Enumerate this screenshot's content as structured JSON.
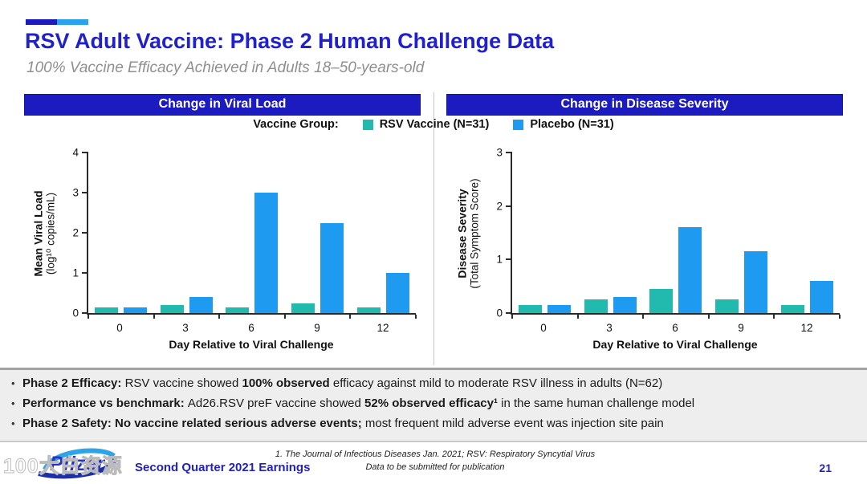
{
  "slide": {
    "title": "RSV Adult Vaccine: Phase 2 Human Challenge Data",
    "subtitle": "100% Vaccine Efficacy Achieved in Adults 18–50-years-old",
    "page_number": "21",
    "footer_label": "Second Quarter 2021 Earnings",
    "logo_text": "Pfizer",
    "watermark": "100大白资源",
    "footnotes": [
      "1.    The Journal of Infectious Diseases Jan. 2021; RSV: Respiratory Syncytial Virus",
      "Data to be submitted for publication"
    ]
  },
  "panels": [
    {
      "header": "Change in Viral Load"
    },
    {
      "header": "Change in Disease Severity"
    }
  ],
  "legend": {
    "label": "Vaccine Group:",
    "items": [
      {
        "name": "RSV Vaccine (N=31)",
        "color": "#22BAAE"
      },
      {
        "name": "Placebo (N=31)",
        "color": "#1E9AF0"
      }
    ]
  },
  "colors": {
    "header_bar": "#1B1BBF",
    "title_blue": "#2121CC",
    "accent_dark": "#1B1BBF",
    "accent_light": "#29A3EB",
    "rsv_vaccine_teal": "#22BAAE",
    "placebo_blue": "#1E9AF0"
  },
  "chart_data": [
    {
      "type": "bar",
      "title": "Change in Viral Load",
      "categories": [
        "0",
        "3",
        "6",
        "9",
        "12"
      ],
      "series": [
        {
          "name": "RSV Vaccine (N=31)",
          "color": "#22BAAE",
          "values": [
            0.15,
            0.2,
            0.15,
            0.25,
            0.15
          ]
        },
        {
          "name": "Placebo (N=31)",
          "color": "#1E9AF0",
          "values": [
            0.15,
            0.4,
            3.0,
            2.25,
            1.0
          ]
        }
      ],
      "xlabel": "Day Relative to Viral Challenge",
      "ylabel": "Mean Viral Load",
      "ylabel2": "(log¹⁰ copies/mL)",
      "ylim": [
        0,
        4
      ],
      "yticks": [
        0,
        1,
        2,
        3,
        4
      ],
      "grid": false,
      "legend_position": "top-center-shared"
    },
    {
      "type": "bar",
      "title": "Change in Disease Severity",
      "categories": [
        "0",
        "3",
        "6",
        "9",
        "12"
      ],
      "series": [
        {
          "name": "RSV Vaccine (N=31)",
          "color": "#22BAAE",
          "values": [
            0.15,
            0.25,
            0.45,
            0.25,
            0.15
          ]
        },
        {
          "name": "Placebo (N=31)",
          "color": "#1E9AF0",
          "values": [
            0.15,
            0.3,
            1.6,
            1.15,
            0.6
          ]
        }
      ],
      "xlabel": "Day Relative to Viral Challenge",
      "ylabel": "Disease Severity",
      "ylabel2": "(Total Symptom Score)",
      "ylim": [
        0,
        3
      ],
      "yticks": [
        0,
        1,
        2,
        3
      ],
      "grid": false,
      "legend_position": "top-center-shared"
    }
  ],
  "bullets": [
    {
      "segments": [
        {
          "text": "Phase 2 Efficacy: ",
          "bold": true
        },
        {
          "text": "RSV vaccine showed ",
          "bold": false
        },
        {
          "text": "100% observed ",
          "bold": true
        },
        {
          "text": "efficacy against mild to moderate RSV illness in adults (N=62)",
          "bold": false
        }
      ]
    },
    {
      "segments": [
        {
          "text": "Performance vs benchmark: ",
          "bold": true
        },
        {
          "text": "Ad26.RSV preF vaccine showed ",
          "bold": false
        },
        {
          "text": "52% observed efficacy¹",
          "bold": true
        },
        {
          "text": " in the same human challenge model",
          "bold": false
        }
      ]
    },
    {
      "segments": [
        {
          "text": "Phase 2 Safety: No vaccine related serious adverse events;",
          "bold": true
        },
        {
          "text": " most frequent mild adverse event was injection site pain",
          "bold": false
        }
      ]
    }
  ]
}
